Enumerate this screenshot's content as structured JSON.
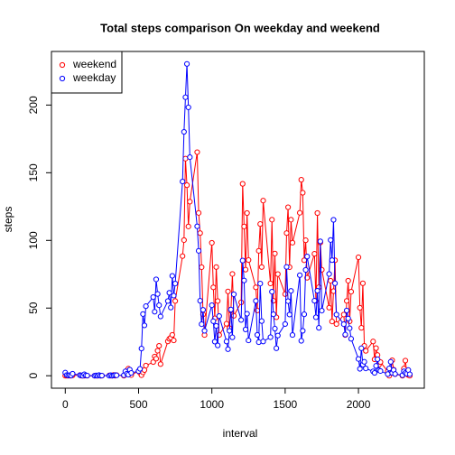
{
  "chart_data": {
    "type": "line",
    "title": "Total steps comparison On weekday and weekend",
    "x_label": "interval",
    "y_label": "steps",
    "x": [
      0,
      10,
      20,
      30,
      40,
      50,
      100,
      110,
      120,
      130,
      140,
      150,
      200,
      210,
      220,
      230,
      240,
      250,
      300,
      310,
      320,
      330,
      340,
      350,
      400,
      410,
      420,
      430,
      440,
      450,
      500,
      510,
      520,
      530,
      540,
      550,
      600,
      610,
      620,
      630,
      640,
      650,
      700,
      710,
      720,
      730,
      740,
      750,
      800,
      810,
      820,
      830,
      840,
      850,
      900,
      910,
      920,
      930,
      940,
      950,
      1000,
      1010,
      1020,
      1030,
      1040,
      1050,
      1100,
      1110,
      1120,
      1130,
      1140,
      1150,
      1200,
      1210,
      1220,
      1230,
      1240,
      1250,
      1300,
      1310,
      1320,
      1330,
      1340,
      1350,
      1400,
      1410,
      1420,
      1430,
      1440,
      1450,
      1500,
      1510,
      1520,
      1530,
      1540,
      1550,
      1600,
      1610,
      1620,
      1630,
      1640,
      1650,
      1700,
      1710,
      1720,
      1730,
      1740,
      1750,
      1800,
      1810,
      1820,
      1830,
      1840,
      1850,
      1900,
      1910,
      1920,
      1930,
      1940,
      1950,
      2000,
      2010,
      2020,
      2030,
      2040,
      2050,
      2100,
      2110,
      2120,
      2130,
      2140,
      2150,
      2200,
      2210,
      2220,
      2230,
      2240,
      2250,
      2300,
      2310,
      2320,
      2330,
      2340,
      2350
    ],
    "series": [
      {
        "name": "weekend",
        "color": "#ff0000",
        "values": [
          0,
          0,
          0,
          0,
          0,
          0.3,
          0.5,
          0,
          0,
          0,
          0.1,
          0,
          0,
          0,
          0,
          0.1,
          0,
          0,
          0.2,
          0,
          0,
          0.6,
          0,
          0.5,
          0,
          1.2,
          3.5,
          5.2,
          1.0,
          0.5,
          3.4,
          2.1,
          0.4,
          2.5,
          4.2,
          7.5,
          10.1,
          14.2,
          12.6,
          18.5,
          22.1,
          8.6,
          25.4,
          27.3,
          28.1,
          30.2,
          26.1,
          55.2,
          88.4,
          100.2,
          160.4,
          140.8,
          110.3,
          128.6,
          165.2,
          120.3,
          105.4,
          80.2,
          45.3,
          30.1,
          98.2,
          65.3,
          42.4,
          80.3,
          55.2,
          30.1,
          38.4,
          62.3,
          35.2,
          48.1,
          75.2,
          44.3,
          54.2,
          141.8,
          110.3,
          78.4,
          120.2,
          85.5,
          65.3,
          48.2,
          92.3,
          112.1,
          80.3,
          129.4,
          68.2,
          115.3,
          55.4,
          90.3,
          43.2,
          75.1,
          60.3,
          105.4,
          124.5,
          80.2,
          115.3,
          98.3,
          120.4,
          144.8,
          135.2,
          85.3,
          100.1,
          72.4,
          90.1,
          55.3,
          120.2,
          65.4,
          98.4,
          78.3,
          50.3,
          70.2,
          40.1,
          62.5,
          85.3,
          38.2,
          45.2,
          30.1,
          55.3,
          70.2,
          40.2,
          62.1,
          87.5,
          50.2,
          35.4,
          68.3,
          22.1,
          18.4,
          25.3,
          12.1,
          20.4,
          15.3,
          8.2,
          10.1,
          3.2,
          0,
          2.1,
          11.4,
          4.5,
          1.2,
          0,
          5.3,
          11.2,
          2.4,
          0.5,
          0
        ]
      },
      {
        "name": "weekday",
        "color": "#0000ff",
        "values": [
          2.3,
          0.5,
          0.2,
          0.4,
          0.1,
          1.5,
          0.4,
          0.2,
          0,
          1.1,
          0.3,
          0.1,
          0,
          0.2,
          0,
          0.5,
          0,
          0.1,
          0,
          0.4,
          0,
          0.2,
          0.5,
          0.3,
          0.4,
          3.2,
          1.5,
          0.8,
          4.5,
          2.1,
          3.4,
          5.1,
          20.1,
          45.6,
          37.2,
          51.4,
          58.1,
          47.3,
          71.2,
          60.4,
          52.1,
          43.8,
          55.2,
          61.3,
          50.4,
          73.8,
          59.2,
          68.1,
          143.5,
          180.2,
          205.8,
          230.4,
          198.3,
          161.5,
          110.4,
          92.3,
          55.4,
          38.1,
          48.7,
          33.2,
          52.1,
          40.3,
          25.2,
          36.8,
          22.4,
          44.1,
          25.3,
          19.6,
          33.2,
          48.9,
          28.4,
          60.2,
          41.2,
          85.1,
          70.4,
          34.2,
          45.8,
          26.1,
          55.3,
          30.2,
          24.8,
          68.1,
          40.4,
          25.3,
          28.5,
          62.1,
          45.4,
          34.8,
          20.3,
          29.7,
          38.2,
          80.4,
          55.1,
          45.2,
          62.7,
          30.1,
          74.3,
          25.8,
          33.2,
          45.4,
          78.2,
          88.1,
          55.4,
          43.2,
          62.8,
          35.4,
          99.3,
          48.1,
          75.2,
          100.3,
          85.4,
          115.2,
          68.3,
          45.2,
          38.1,
          30.4,
          48.2,
          42.3,
          35.1,
          27.3,
          12.4,
          5.1,
          20.3,
          8.2,
          10.3,
          5.4,
          3.2,
          2.1,
          7.3,
          12.2,
          4.1,
          3.5,
          1.2,
          5.4,
          10.3,
          2.1,
          4.2,
          1.3,
          0.4,
          3.2,
          2.1,
          1.5,
          4.2,
          1.1
        ]
      }
    ],
    "xlim": [
      -94.2,
      2449.2
    ],
    "ylim": [
      -9.2,
      239.6
    ],
    "xticks": [
      0,
      500,
      1000,
      1500,
      2000
    ],
    "yticks": [
      0,
      50,
      100,
      150,
      200
    ],
    "legend": "top-left",
    "grid": false
  }
}
